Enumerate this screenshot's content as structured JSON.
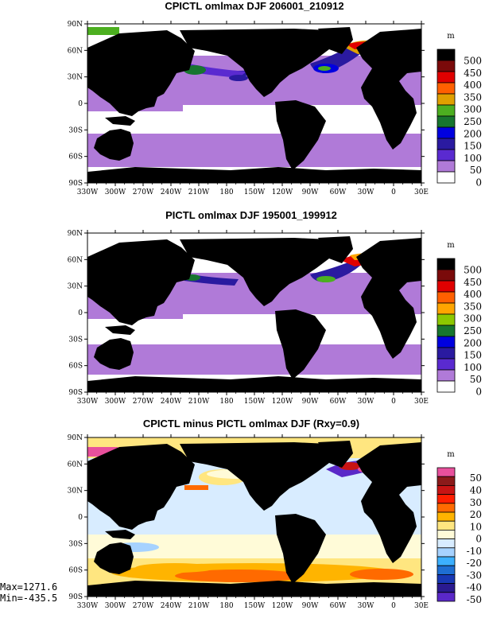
{
  "chart_data": [
    {
      "type": "heatmap",
      "title": "CPICTL omlmax DJF 206001_210912",
      "x_tick_labels": [
        "330W",
        "300W",
        "270W",
        "240W",
        "210W",
        "180",
        "150W",
        "120W",
        "90W",
        "60W",
        "30W",
        "0",
        "30E"
      ],
      "y_tick_labels": [
        "90N",
        "60N",
        "30N",
        "0",
        "30S",
        "60S",
        "90S"
      ],
      "xlim": [
        -330,
        30
      ],
      "ylim": [
        -90,
        90
      ],
      "colorbar": {
        "unit": "m",
        "labels": [
          "500",
          "450",
          "400",
          "350",
          "300",
          "250",
          "200",
          "150",
          "100",
          "50",
          "0"
        ],
        "colors": [
          "#000000",
          "#7a0a0a",
          "#e00000",
          "#ff6000",
          "#e0a000",
          "#4caf20",
          "#17752f",
          "#0000e0",
          "#2a1aa0",
          "#5a2ad0",
          "#b07ad8",
          "#ffffff"
        ]
      }
    },
    {
      "type": "heatmap",
      "title": "PICTL omlmax DJF 195001_199912",
      "x_tick_labels": [
        "330W",
        "300W",
        "270W",
        "240W",
        "210W",
        "180",
        "150W",
        "120W",
        "90W",
        "60W",
        "30W",
        "0",
        "30E"
      ],
      "y_tick_labels": [
        "90N",
        "60N",
        "30N",
        "0",
        "30S",
        "60S",
        "90S"
      ],
      "xlim": [
        -330,
        30
      ],
      "ylim": [
        -90,
        90
      ],
      "colorbar": {
        "unit": "m",
        "labels": [
          "500",
          "450",
          "400",
          "350",
          "300",
          "250",
          "200",
          "150",
          "100",
          "50",
          "0"
        ],
        "colors": [
          "#000000",
          "#7a0a0a",
          "#e00000",
          "#ff6000",
          "#ffa500",
          "#8cc800",
          "#17752f",
          "#0000e0",
          "#2a1aa0",
          "#5a2ad0",
          "#b07ad8",
          "#ffffff"
        ]
      }
    },
    {
      "type": "heatmap",
      "title": "CPICTL minus PICTL omlmax DJF (Rxy=0.9)",
      "x_tick_labels": [
        "330W",
        "300W",
        "270W",
        "240W",
        "210W",
        "180",
        "150W",
        "120W",
        "90W",
        "60W",
        "30W",
        "0",
        "30E"
      ],
      "y_tick_labels": [
        "90N",
        "60N",
        "30N",
        "0",
        "30S",
        "60S",
        "90S"
      ],
      "xlim": [
        -330,
        30
      ],
      "ylim": [
        -90,
        90
      ],
      "stats": {
        "max": "Max=1271.6",
        "min": "Min=-435.5"
      },
      "colorbar": {
        "unit": "m",
        "labels": [
          "50",
          "40",
          "30",
          "20",
          "10",
          "0",
          "-10",
          "-20",
          "-30",
          "-40",
          "-50"
        ],
        "colors": [
          "#e8509c",
          "#8c1a1a",
          "#c81414",
          "#ff1e00",
          "#ff6a00",
          "#ffb400",
          "#ffe680",
          "#fffbd8",
          "#d8ecff",
          "#a6d2ff",
          "#3cb0ff",
          "#1e6ed2",
          "#1838b4",
          "#2a1a90",
          "#5a28c8"
        ]
      }
    }
  ]
}
